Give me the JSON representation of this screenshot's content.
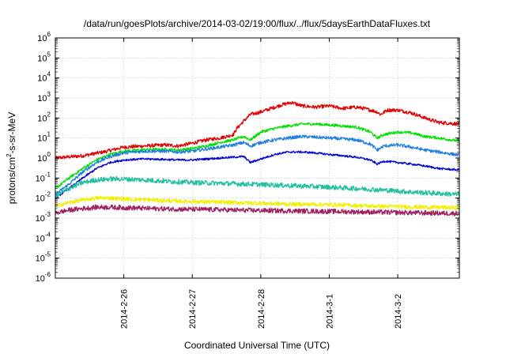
{
  "chart_data": {
    "type": "line",
    "title": "/data/run/goesPlots/archive/2014-03-02/19:00/flux/../flux/5daysEarthDataFluxes.txt",
    "xlabel": "Coordinated Universal Time (UTC)",
    "ylabel": {
      "prefix": "protons/cm",
      "sup": "2",
      "suffix": "-s-sr-MeV"
    },
    "yscale": "log",
    "ylim": [
      1e-06,
      1000000.0
    ],
    "y_ticks": [
      {
        "base": "10",
        "exp": "-6"
      },
      {
        "base": "10",
        "exp": "-5"
      },
      {
        "base": "10",
        "exp": "-4"
      },
      {
        "base": "10",
        "exp": "-3"
      },
      {
        "base": "10",
        "exp": "-2"
      },
      {
        "base": "10",
        "exp": "-1"
      },
      {
        "base": "10",
        "exp": "0"
      },
      {
        "base": "10",
        "exp": "1"
      },
      {
        "base": "10",
        "exp": "2"
      },
      {
        "base": "10",
        "exp": "3"
      },
      {
        "base": "10",
        "exp": "4"
      },
      {
        "base": "10",
        "exp": "5"
      },
      {
        "base": "10",
        "exp": "6"
      }
    ],
    "x_ticks": [
      "2014-2-26",
      "2014-2-27",
      "2014-2-28",
      "2014-3-1",
      "2014-3-2"
    ],
    "xlim_days": [
      -1.0,
      4.9
    ],
    "grid": true,
    "series": [
      {
        "color": "#e00000",
        "points": [
          [
            -1.0,
            1.0
          ],
          [
            -0.6,
            1.3
          ],
          [
            -0.3,
            2.0
          ],
          [
            0.0,
            3.5
          ],
          [
            0.3,
            4.0
          ],
          [
            0.6,
            4.5
          ],
          [
            0.8,
            4.0
          ],
          [
            1.0,
            5.5
          ],
          [
            1.2,
            8
          ],
          [
            1.4,
            10
          ],
          [
            1.5,
            12
          ],
          [
            1.6,
            15
          ],
          [
            1.65,
            30
          ],
          [
            1.75,
            70
          ],
          [
            1.85,
            150
          ],
          [
            2.0,
            200
          ],
          [
            2.15,
            300
          ],
          [
            2.3,
            450
          ],
          [
            2.45,
            600
          ],
          [
            2.6,
            400
          ],
          [
            2.8,
            350
          ],
          [
            3.0,
            400
          ],
          [
            3.2,
            300
          ],
          [
            3.4,
            350
          ],
          [
            3.5,
            300
          ],
          [
            3.6,
            250
          ],
          [
            3.7,
            200
          ],
          [
            3.75,
            150
          ],
          [
            3.85,
            250
          ],
          [
            4.0,
            250
          ],
          [
            4.2,
            180
          ],
          [
            4.4,
            100
          ],
          [
            4.6,
            60
          ],
          [
            4.9,
            50
          ]
        ]
      },
      {
        "color": "#00e000",
        "points": [
          [
            -1.0,
            0.03
          ],
          [
            -0.8,
            0.1
          ],
          [
            -0.6,
            0.3
          ],
          [
            -0.4,
            0.8
          ],
          [
            -0.2,
            1.5
          ],
          [
            0.0,
            2.2
          ],
          [
            0.3,
            2.6
          ],
          [
            0.6,
            2.7
          ],
          [
            0.8,
            2.5
          ],
          [
            1.0,
            3.0
          ],
          [
            1.2,
            4.0
          ],
          [
            1.4,
            6
          ],
          [
            1.6,
            8
          ],
          [
            1.75,
            12
          ],
          [
            1.85,
            8
          ],
          [
            2.0,
            20
          ],
          [
            2.2,
            30
          ],
          [
            2.4,
            40
          ],
          [
            2.6,
            50
          ],
          [
            2.8,
            50
          ],
          [
            3.0,
            45
          ],
          [
            3.2,
            40
          ],
          [
            3.4,
            35
          ],
          [
            3.6,
            20
          ],
          [
            3.7,
            10
          ],
          [
            3.8,
            15
          ],
          [
            4.0,
            20
          ],
          [
            4.2,
            18
          ],
          [
            4.4,
            12
          ],
          [
            4.6,
            10
          ],
          [
            4.9,
            7
          ]
        ]
      },
      {
        "color": "#1e7fe0",
        "points": [
          [
            -1.0,
            0.015
          ],
          [
            -0.8,
            0.05
          ],
          [
            -0.6,
            0.2
          ],
          [
            -0.4,
            0.6
          ],
          [
            -0.2,
            1.2
          ],
          [
            0.0,
            1.8
          ],
          [
            0.3,
            2.2
          ],
          [
            0.6,
            2.2
          ],
          [
            0.8,
            2.0
          ],
          [
            1.0,
            2.2
          ],
          [
            1.2,
            2.8
          ],
          [
            1.4,
            3.5
          ],
          [
            1.6,
            4.5
          ],
          [
            1.75,
            6
          ],
          [
            1.85,
            4
          ],
          [
            2.0,
            6
          ],
          [
            2.2,
            8
          ],
          [
            2.4,
            10
          ],
          [
            2.6,
            12
          ],
          [
            2.8,
            11
          ],
          [
            3.0,
            10
          ],
          [
            3.2,
            9
          ],
          [
            3.4,
            8
          ],
          [
            3.6,
            5
          ],
          [
            3.7,
            2.5
          ],
          [
            3.8,
            4
          ],
          [
            4.0,
            4.5
          ],
          [
            4.2,
            3.5
          ],
          [
            4.4,
            2.5
          ],
          [
            4.6,
            2
          ],
          [
            4.9,
            1.4
          ]
        ]
      },
      {
        "color": "#0000d0",
        "points": [
          [
            -1.0,
            0.01
          ],
          [
            -0.8,
            0.03
          ],
          [
            -0.6,
            0.1
          ],
          [
            -0.4,
            0.3
          ],
          [
            -0.2,
            0.6
          ],
          [
            0.0,
            0.8
          ],
          [
            0.3,
            0.9
          ],
          [
            0.6,
            0.85
          ],
          [
            0.8,
            0.8
          ],
          [
            1.0,
            0.8
          ],
          [
            1.2,
            0.9
          ],
          [
            1.4,
            1.0
          ],
          [
            1.6,
            1.1
          ],
          [
            1.75,
            1.2
          ],
          [
            1.85,
            0.6
          ],
          [
            2.0,
            0.9
          ],
          [
            2.2,
            1.5
          ],
          [
            2.4,
            2.0
          ],
          [
            2.6,
            2.0
          ],
          [
            2.8,
            1.8
          ],
          [
            3.0,
            1.5
          ],
          [
            3.2,
            1.3
          ],
          [
            3.4,
            1.1
          ],
          [
            3.6,
            0.8
          ],
          [
            3.7,
            0.5
          ],
          [
            3.8,
            0.7
          ],
          [
            4.0,
            0.6
          ],
          [
            4.2,
            0.5
          ],
          [
            4.4,
            0.4
          ],
          [
            4.6,
            0.3
          ],
          [
            4.9,
            0.25
          ]
        ]
      },
      {
        "color": "#20c0a0",
        "points": [
          [
            -1.0,
            0.012
          ],
          [
            -0.8,
            0.03
          ],
          [
            -0.6,
            0.06
          ],
          [
            -0.4,
            0.08
          ],
          [
            -0.2,
            0.09
          ],
          [
            0.0,
            0.09
          ],
          [
            0.3,
            0.08
          ],
          [
            0.6,
            0.07
          ],
          [
            1.0,
            0.06
          ],
          [
            1.4,
            0.055
          ],
          [
            1.8,
            0.05
          ],
          [
            2.2,
            0.045
          ],
          [
            2.6,
            0.04
          ],
          [
            3.0,
            0.035
          ],
          [
            3.4,
            0.03
          ],
          [
            3.8,
            0.025
          ],
          [
            4.2,
            0.02
          ],
          [
            4.6,
            0.017
          ],
          [
            4.9,
            0.015
          ]
        ]
      },
      {
        "color": "#f0f000",
        "points": [
          [
            -1.0,
            0.004
          ],
          [
            -0.8,
            0.006
          ],
          [
            -0.6,
            0.008
          ],
          [
            -0.4,
            0.01
          ],
          [
            -0.2,
            0.01
          ],
          [
            0.0,
            0.009
          ],
          [
            0.4,
            0.008
          ],
          [
            0.8,
            0.007
          ],
          [
            1.2,
            0.0065
          ],
          [
            1.6,
            0.006
          ],
          [
            2.0,
            0.0055
          ],
          [
            2.4,
            0.005
          ],
          [
            2.8,
            0.0048
          ],
          [
            3.2,
            0.0045
          ],
          [
            3.6,
            0.004
          ],
          [
            4.0,
            0.0038
          ],
          [
            4.4,
            0.0035
          ],
          [
            4.9,
            0.0033
          ]
        ]
      },
      {
        "color": "#a02060",
        "points": [
          [
            -1.0,
            0.0018
          ],
          [
            -0.8,
            0.0025
          ],
          [
            -0.6,
            0.003
          ],
          [
            -0.4,
            0.0035
          ],
          [
            -0.2,
            0.0035
          ],
          [
            0.0,
            0.0033
          ],
          [
            0.4,
            0.003
          ],
          [
            0.8,
            0.0028
          ],
          [
            1.2,
            0.0027
          ],
          [
            1.6,
            0.0025
          ],
          [
            2.0,
            0.0024
          ],
          [
            2.4,
            0.0023
          ],
          [
            2.8,
            0.0022
          ],
          [
            3.2,
            0.0021
          ],
          [
            3.6,
            0.002
          ],
          [
            4.0,
            0.0019
          ],
          [
            4.4,
            0.0018
          ],
          [
            4.9,
            0.0017
          ]
        ]
      }
    ]
  }
}
